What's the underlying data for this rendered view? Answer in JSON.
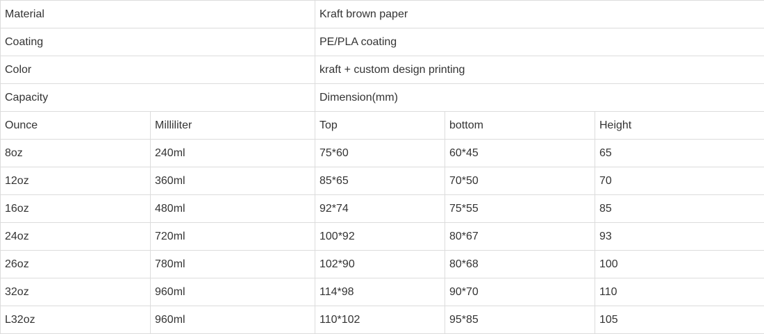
{
  "specs": [
    {
      "label": "Material",
      "value": "Kraft brown paper"
    },
    {
      "label": "Coating",
      "value": "PE/PLA coating"
    },
    {
      "label": "Color",
      "value": "kraft + custom design printing"
    }
  ],
  "capacity_label": "Capacity",
  "dimension_label": "Dimension(mm)",
  "headers": [
    "Ounce",
    "Milliliter",
    "Top",
    "bottom",
    "Height"
  ],
  "rows": [
    [
      "8oz",
      "240ml",
      "75*60",
      "60*45",
      "65"
    ],
    [
      "12oz",
      "360ml",
      "85*65",
      "70*50",
      "70"
    ],
    [
      "16oz",
      "480ml",
      "92*74",
      "75*55",
      "85"
    ],
    [
      "24oz",
      "720ml",
      "100*92",
      "80*67",
      "93"
    ],
    [
      "26oz",
      "780ml",
      "102*90",
      "80*68",
      "100"
    ],
    [
      "32oz",
      "960ml",
      "114*98",
      "90*70",
      "110"
    ],
    [
      "L32oz",
      "960ml",
      "110*102",
      "95*85",
      "105"
    ]
  ]
}
